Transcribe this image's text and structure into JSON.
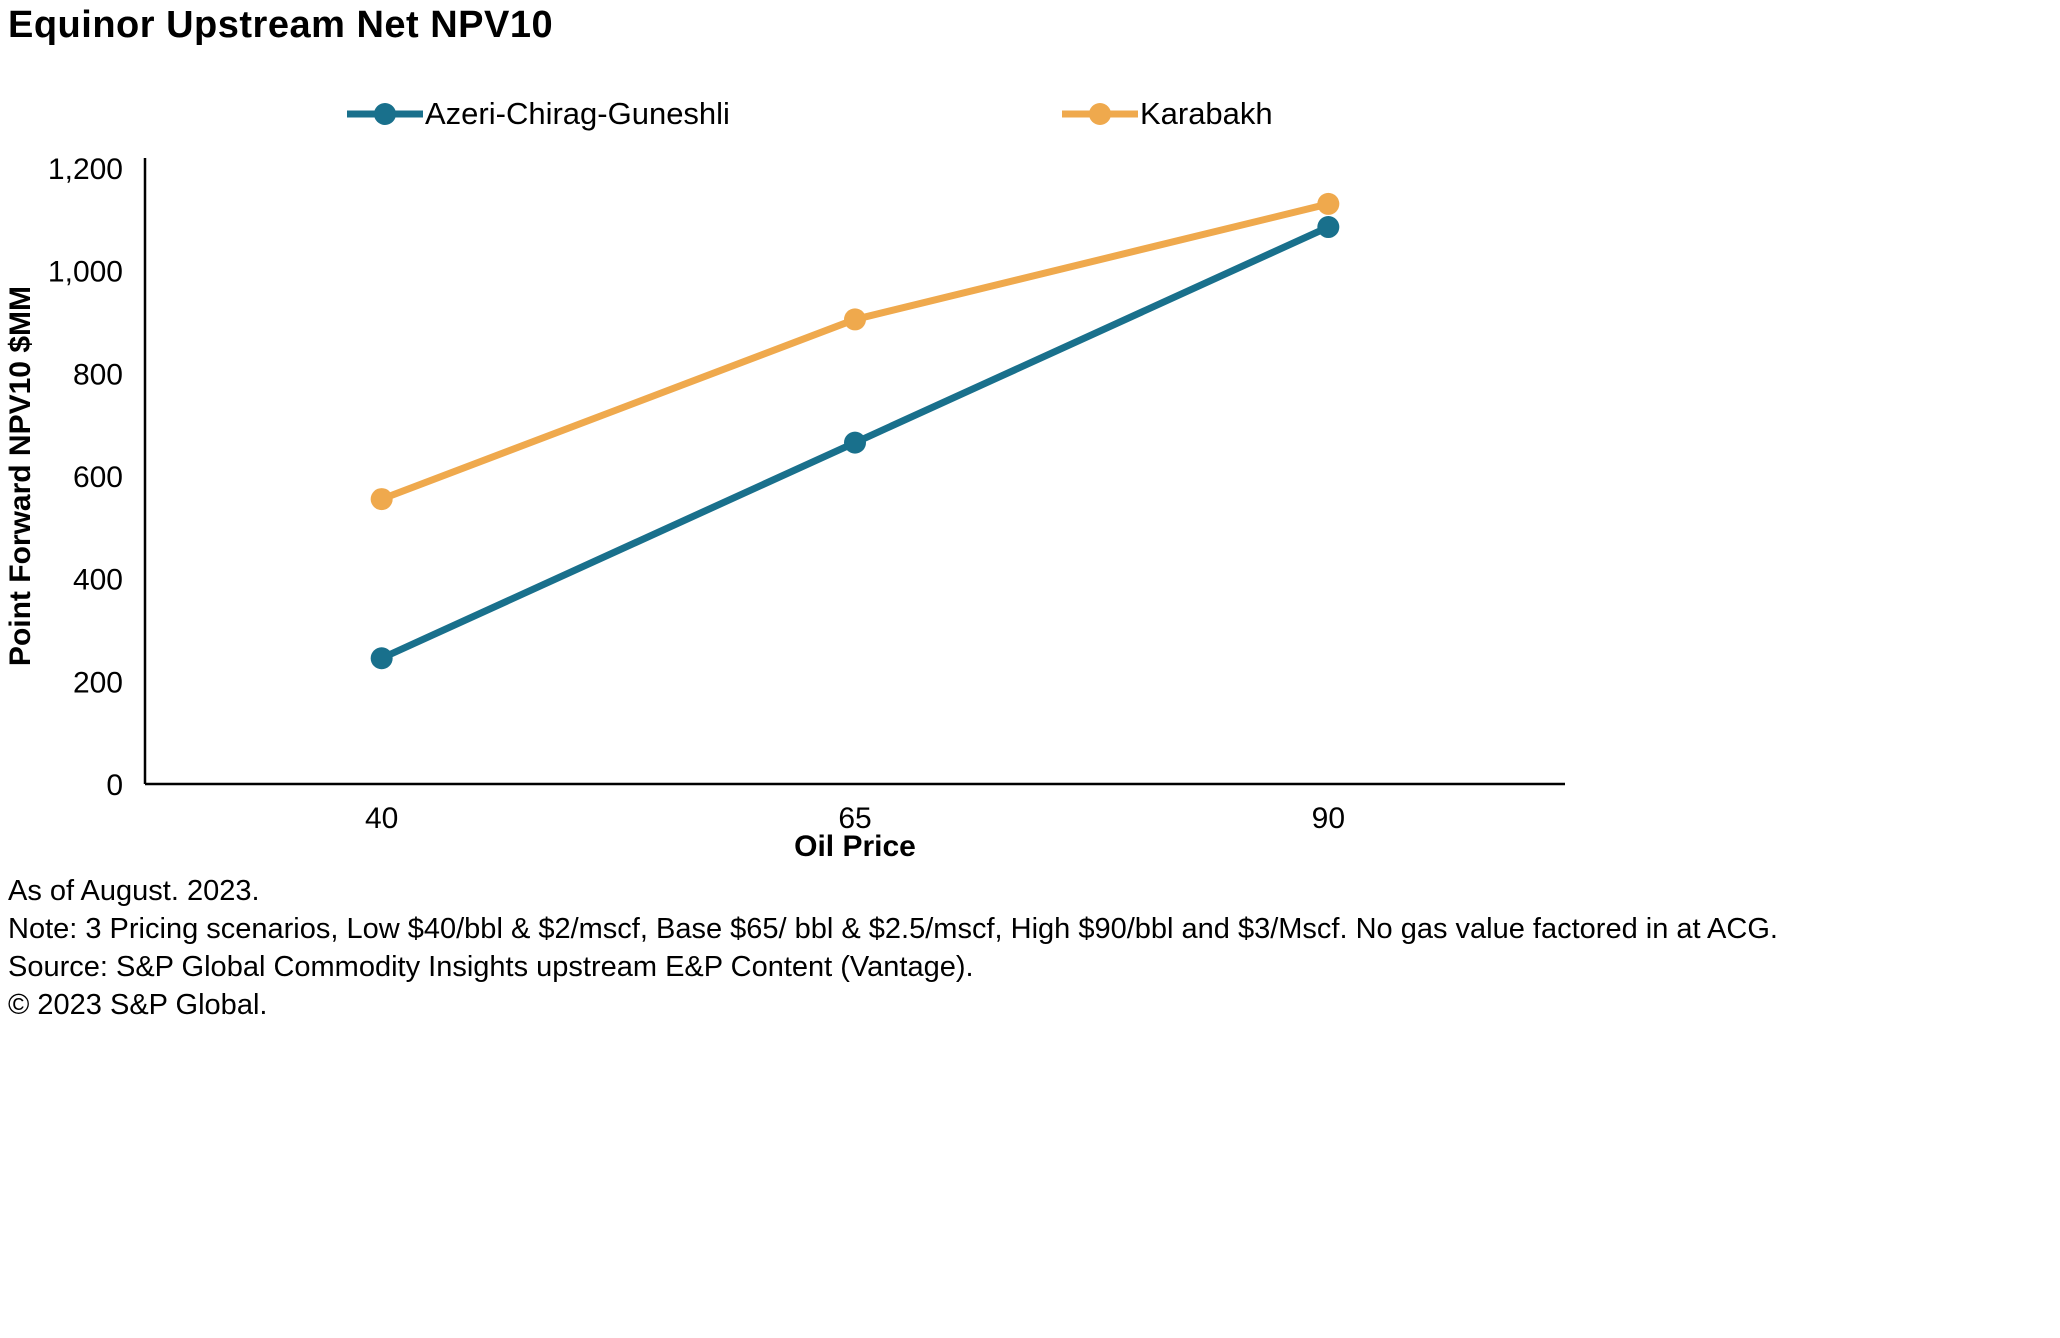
{
  "title": "Equinor Upstream Net NPV10",
  "chart_data": {
    "type": "line",
    "categories": [
      "40",
      "65",
      "90"
    ],
    "series": [
      {
        "name": "Azeri-Chirag-Guneshli",
        "color": "#19708c",
        "values": [
          245,
          665,
          1085
        ]
      },
      {
        "name": "Karabakh",
        "color": "#efa94d",
        "values": [
          555,
          905,
          1130
        ]
      }
    ],
    "title": "Equinor Upstream Net NPV10",
    "xlabel": "Oil Price",
    "ylabel": "Point Forward NPV10 $MM",
    "ylim": [
      0,
      1200
    ],
    "yticks": [
      0,
      200,
      400,
      600,
      800,
      1000,
      1200
    ],
    "ytick_labels": [
      "0",
      "200",
      "400",
      "600",
      "800",
      "1,000",
      "1,200"
    ],
    "grid": false,
    "legend_position": "top",
    "axis_color": "#000000"
  },
  "footer": {
    "as_of": "As of August. 2023.",
    "note": "Note: 3 Pricing scenarios, Low $40/bbl & $2/mscf, Base $65/ bbl & $2.5/mscf, High $90/bbl and $3/Mscf. No gas value factored in at ACG.",
    "source": "Source: S&P Global Commodity Insights upstream E&P Content (Vantage).",
    "copyright": "© 2023 S&P Global."
  }
}
